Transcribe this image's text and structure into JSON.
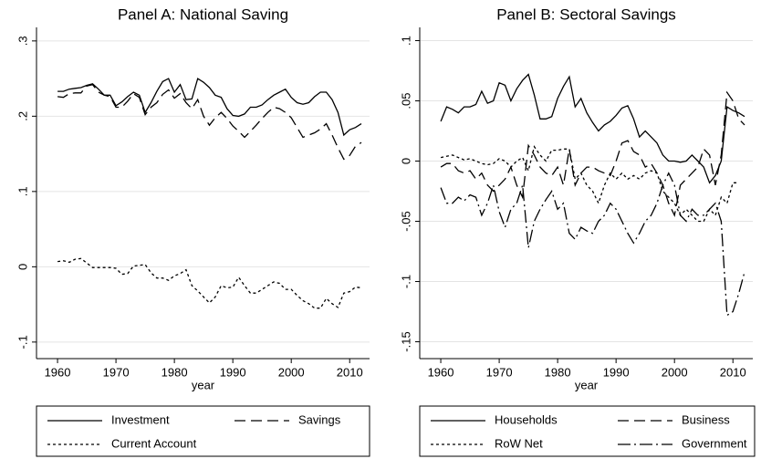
{
  "chart_data": [
    {
      "type": "line",
      "title": "Panel A: National Saving",
      "xlabel": "year",
      "x": [
        1960,
        1961,
        1962,
        1963,
        1964,
        1965,
        1966,
        1967,
        1968,
        1969,
        1970,
        1971,
        1972,
        1973,
        1974,
        1975,
        1976,
        1977,
        1978,
        1979,
        1980,
        1981,
        1982,
        1983,
        1984,
        1985,
        1986,
        1987,
        1988,
        1989,
        1990,
        1991,
        1992,
        1993,
        1994,
        1995,
        1996,
        1997,
        1998,
        1999,
        2000,
        2001,
        2002,
        2003,
        2004,
        2005,
        2006,
        2007,
        2008,
        2009,
        2010,
        2011,
        2012
      ],
      "xlim": [
        1956.4,
        2013.4
      ],
      "xticks": [
        1960,
        1970,
        1980,
        1990,
        2000,
        2010
      ],
      "ylim": [
        -0.122,
        0.318
      ],
      "yticks": [
        {
          "value": -0.1,
          "label": "-.1"
        },
        0,
        {
          "value": 0.1,
          "label": ".1"
        },
        {
          "value": 0.2,
          "label": ".2"
        },
        {
          "value": 0.3,
          "label": ".3"
        }
      ],
      "grid": true,
      "series": [
        {
          "name": "Investment",
          "color": "#000000",
          "style": "solid",
          "values": [
            0.233,
            0.233,
            0.236,
            0.237,
            0.238,
            0.241,
            0.243,
            0.236,
            0.228,
            0.228,
            0.214,
            0.219,
            0.226,
            0.232,
            0.228,
            0.205,
            0.218,
            0.233,
            0.246,
            0.25,
            0.232,
            0.242,
            0.222,
            0.223,
            0.25,
            0.245,
            0.238,
            0.228,
            0.225,
            0.21,
            0.201,
            0.2,
            0.203,
            0.212,
            0.212,
            0.215,
            0.222,
            0.228,
            0.232,
            0.236,
            0.225,
            0.218,
            0.216,
            0.218,
            0.226,
            0.232,
            0.232,
            0.222,
            0.205,
            0.175,
            0.182,
            0.185,
            0.19
          ]
        },
        {
          "name": "Savings",
          "color": "#000000",
          "style": "longdash",
          "values": [
            0.226,
            0.225,
            0.23,
            0.231,
            0.231,
            0.24,
            0.242,
            0.232,
            0.228,
            0.226,
            0.212,
            0.212,
            0.22,
            0.23,
            0.225,
            0.202,
            0.212,
            0.218,
            0.229,
            0.235,
            0.224,
            0.23,
            0.218,
            0.21,
            0.222,
            0.2,
            0.188,
            0.198,
            0.205,
            0.197,
            0.187,
            0.18,
            0.172,
            0.18,
            0.188,
            0.197,
            0.205,
            0.212,
            0.21,
            0.205,
            0.198,
            0.185,
            0.172,
            0.175,
            0.178,
            0.183,
            0.19,
            0.175,
            0.158,
            0.143,
            0.148,
            0.16,
            0.165
          ]
        },
        {
          "name": "Current Account",
          "color": "#000000",
          "style": "shortdash",
          "values": [
            0.007,
            0.008,
            0.006,
            0.01,
            0.011,
            0.005,
            -0.001,
            -0.001,
            -0.001,
            -0.001,
            -0.002,
            -0.01,
            -0.009,
            0.001,
            0.002,
            0.003,
            -0.008,
            -0.015,
            -0.015,
            -0.018,
            -0.012,
            -0.009,
            -0.004,
            -0.025,
            -0.032,
            -0.04,
            -0.048,
            -0.04,
            -0.025,
            -0.028,
            -0.027,
            -0.014,
            -0.025,
            -0.035,
            -0.035,
            -0.03,
            -0.025,
            -0.02,
            -0.022,
            -0.03,
            -0.03,
            -0.038,
            -0.045,
            -0.049,
            -0.055,
            -0.055,
            -0.042,
            -0.049,
            -0.054,
            -0.035,
            -0.033,
            -0.027,
            -0.028
          ]
        }
      ]
    },
    {
      "type": "line",
      "title": "Panel B: Sectoral Savings",
      "xlabel": "year",
      "x": [
        1960,
        1961,
        1962,
        1963,
        1964,
        1965,
        1966,
        1967,
        1968,
        1969,
        1970,
        1971,
        1972,
        1973,
        1974,
        1975,
        1976,
        1977,
        1978,
        1979,
        1980,
        1981,
        1982,
        1983,
        1984,
        1985,
        1986,
        1987,
        1988,
        1989,
        1990,
        1991,
        1992,
        1993,
        1994,
        1995,
        1996,
        1997,
        1998,
        1999,
        2000,
        2001,
        2002,
        2003,
        2004,
        2005,
        2006,
        2007,
        2008,
        2009,
        2010,
        2011,
        2012
      ],
      "xlim": [
        1956.4,
        2013.4
      ],
      "xticks": [
        1960,
        1970,
        1980,
        1990,
        2000,
        2010
      ],
      "ylim": [
        -0.164,
        0.111
      ],
      "yticks": [
        {
          "value": -0.15,
          "label": "-.15"
        },
        {
          "value": -0.1,
          "label": "-.1"
        },
        {
          "value": -0.05,
          "label": "-.05"
        },
        0,
        {
          "value": 0.05,
          "label": ".05"
        },
        {
          "value": 0.1,
          "label": ".1"
        }
      ],
      "grid": true,
      "series": [
        {
          "name": "Households",
          "color": "#000000",
          "style": "solid",
          "values": [
            0.033,
            0.045,
            0.043,
            0.04,
            0.045,
            0.045,
            0.047,
            0.058,
            0.048,
            0.05,
            0.065,
            0.063,
            0.05,
            0.06,
            0.067,
            0.072,
            0.055,
            0.035,
            0.035,
            0.037,
            0.052,
            0.062,
            0.07,
            0.045,
            0.052,
            0.04,
            0.032,
            0.025,
            0.03,
            0.033,
            0.038,
            0.044,
            0.046,
            0.035,
            0.02,
            0.025,
            0.02,
            0.015,
            0.005,
            0,
            0,
            -0.001,
            0,
            0.005,
            0,
            -0.005,
            -0.018,
            -0.012,
            0,
            0.045,
            0.042,
            0.04,
            0.037
          ]
        },
        {
          "name": "Business",
          "color": "#000000",
          "style": "longdash",
          "values": [
            -0.005,
            -0.002,
            -0.002,
            -0.008,
            -0.01,
            -0.008,
            -0.015,
            -0.01,
            -0.02,
            -0.025,
            -0.02,
            -0.015,
            -0.005,
            -0.02,
            -0.03,
            0.013,
            0.005,
            -0.005,
            -0.01,
            -0.012,
            -0.005,
            -0.02,
            0.01,
            -0.02,
            -0.01,
            -0.005,
            -0.005,
            -0.008,
            -0.01,
            -0.012,
            0,
            0.015,
            0.017,
            0.008,
            0.005,
            -0.005,
            -0.002,
            -0.01,
            -0.02,
            -0.035,
            -0.045,
            -0.02,
            -0.015,
            -0.01,
            -0.005,
            0.01,
            0.005,
            -0.02,
            0.005,
            0.057,
            0.05,
            0.035,
            0.03
          ]
        },
        {
          "name": "RoW Net",
          "color": "#000000",
          "style": "shortdash",
          "values": [
            0.003,
            0.004,
            0.005,
            0.003,
            0.001,
            0.002,
            0,
            -0.002,
            -0.003,
            -0.002,
            0.002,
            0,
            -0.005,
            0,
            0.003,
            -0.008,
            0.012,
            0.005,
            0,
            0.009,
            0.009,
            0.01,
            0.01,
            -0.015,
            -0.01,
            -0.02,
            -0.025,
            -0.035,
            -0.02,
            -0.01,
            -0.015,
            -0.01,
            -0.015,
            -0.012,
            -0.015,
            -0.01,
            -0.008,
            -0.01,
            -0.025,
            -0.03,
            -0.035,
            -0.045,
            -0.04,
            -0.045,
            -0.05,
            -0.05,
            -0.04,
            -0.045,
            -0.03,
            -0.035,
            -0.018,
            -0.018,
            null
          ]
        },
        {
          "name": "Government",
          "color": "#000000",
          "style": "dashdot",
          "values": [
            -0.022,
            -0.035,
            -0.035,
            -0.03,
            -0.033,
            -0.028,
            -0.03,
            -0.045,
            -0.035,
            -0.02,
            -0.042,
            -0.055,
            -0.04,
            -0.035,
            -0.02,
            -0.072,
            -0.05,
            -0.04,
            -0.032,
            -0.025,
            -0.04,
            -0.035,
            -0.06,
            -0.065,
            -0.055,
            -0.058,
            -0.06,
            -0.05,
            -0.045,
            -0.035,
            -0.04,
            -0.05,
            -0.06,
            -0.068,
            -0.06,
            -0.05,
            -0.045,
            -0.035,
            -0.02,
            -0.01,
            -0.02,
            -0.045,
            -0.05,
            -0.04,
            -0.045,
            -0.045,
            -0.04,
            -0.035,
            -0.05,
            -0.128,
            -0.125,
            -0.11,
            -0.092
          ]
        }
      ]
    }
  ]
}
